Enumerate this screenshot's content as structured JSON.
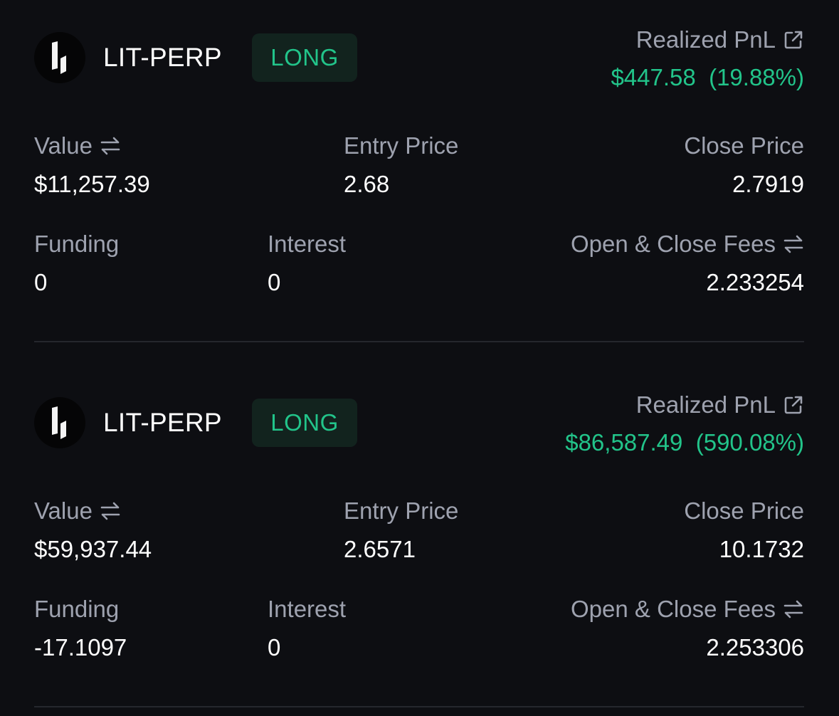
{
  "colors": {
    "background": "#0d0e12",
    "label": "#9ea2af",
    "value": "#ffffff",
    "positive": "#22c48a",
    "badge_background": "#12231e",
    "divider": "#25272d"
  },
  "labels": {
    "realized_pnl": "Realized PnL",
    "value": "Value",
    "entry_price": "Entry Price",
    "close_price": "Close Price",
    "funding": "Funding",
    "interest": "Interest",
    "fees": "Open & Close Fees"
  },
  "icons": {
    "coin": "lit-logo-icon",
    "external_link": "external-link-icon",
    "swap": "swap-arrows-icon"
  },
  "positions": [
    {
      "symbol": "LIT-PERP",
      "side": "LONG",
      "pnl_amount": "$447.58",
      "pnl_percent": "(19.88%)",
      "value": "$11,257.39",
      "entry_price": "2.68",
      "close_price": "2.7919",
      "funding": "0",
      "interest": "0",
      "fees": "2.233254"
    },
    {
      "symbol": "LIT-PERP",
      "side": "LONG",
      "pnl_amount": "$86,587.49",
      "pnl_percent": "(590.08%)",
      "value": "$59,937.44",
      "entry_price": "2.6571",
      "close_price": "10.1732",
      "funding": "-17.1097",
      "interest": "0",
      "fees": "2.253306"
    }
  ]
}
